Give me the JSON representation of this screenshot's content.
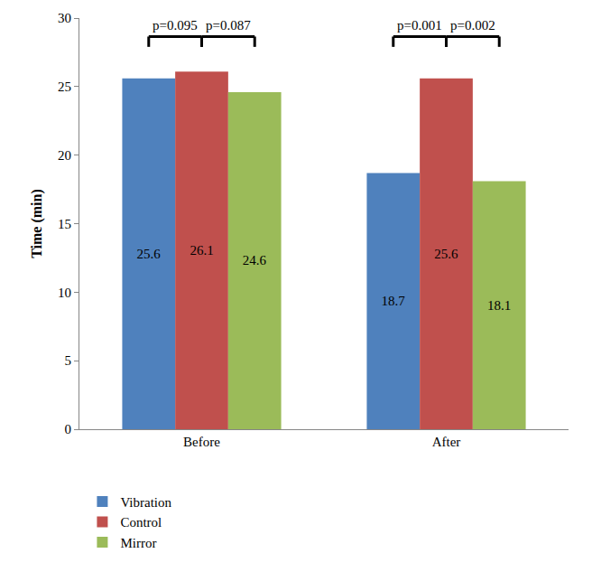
{
  "chart_data": {
    "type": "bar",
    "y_label": "Time (min)",
    "categories": [
      "Before",
      "After"
    ],
    "series": [
      {
        "name": "Vibration",
        "color": "#4f81bd",
        "values": [
          25.6,
          18.7
        ]
      },
      {
        "name": "Control",
        "color": "#c0504d",
        "values": [
          26.1,
          25.6
        ]
      },
      {
        "name": "Mirror",
        "color": "#9bbb59",
        "values": [
          24.6,
          18.1
        ]
      }
    ],
    "ylim": [
      0,
      30
    ],
    "yticks": [
      0,
      5,
      10,
      15,
      20,
      25,
      30
    ],
    "grid": false,
    "data_labels": true,
    "legend": "bottom left",
    "annotations": [
      {
        "text": "p=0.095",
        "category": "Before",
        "series": [
          "Vibration",
          "Control"
        ]
      },
      {
        "text": "p=0.087",
        "category": "Before",
        "series": [
          "Control",
          "Mirror"
        ]
      },
      {
        "text": "p=0.001",
        "category": "After",
        "series": [
          "Vibration",
          "Control"
        ]
      },
      {
        "text": "p=0.002",
        "category": "After",
        "series": [
          "Control",
          "Mirror"
        ]
      }
    ]
  }
}
